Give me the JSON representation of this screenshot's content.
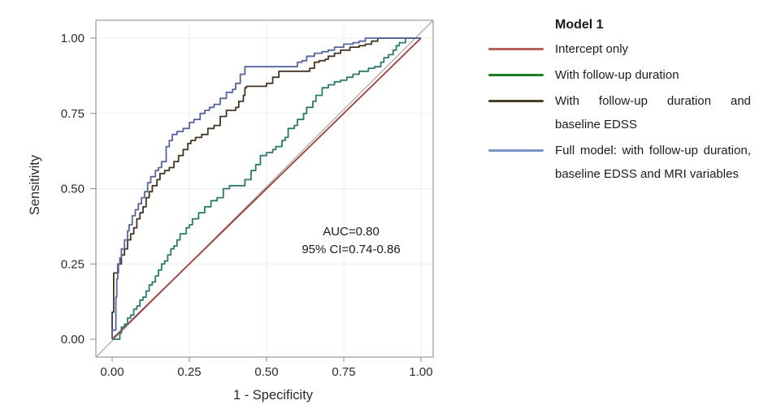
{
  "chart": {
    "ylabel": "Sensitivity",
    "xlabel": "1 - Specificity",
    "x_ticks": [
      "0.00",
      "0.25",
      "0.50",
      "0.75",
      "1.00"
    ],
    "y_ticks": [
      "0.00",
      "0.25",
      "0.50",
      "0.75",
      "1.00"
    ],
    "annotation_line1": "AUC=0.80",
    "annotation_line2": "95% CI=0.74-0.86"
  },
  "chart_data": {
    "type": "line",
    "subtype": "roc-step-curves",
    "title": "",
    "xlabel": "1 - Specificity",
    "ylabel": "Sensitivity",
    "xlim": [
      0,
      1
    ],
    "ylim": [
      0,
      1
    ],
    "tick_values": [
      0,
      0.25,
      0.5,
      0.75,
      1
    ],
    "tick_labels": [
      "0.00",
      "0.25",
      "0.50",
      "0.75",
      "1.00"
    ],
    "grid": true,
    "legend_position": "right",
    "annotation": {
      "lines": [
        "AUC=0.80",
        "95% CI=0.74-0.86"
      ],
      "x": 0.775,
      "y": 0.33
    },
    "reference_line": {
      "name": "chance-diagonal",
      "color": "#a9a9a9",
      "from": [
        0,
        0
      ],
      "to": [
        1,
        1
      ],
      "extends_to_frame": true
    },
    "frame_color": "#9a9a9a",
    "grid_color": "#ededed",
    "series": [
      {
        "name": "Intercept only",
        "color": "#9c3e37",
        "interp": "linear",
        "points": [
          [
            0,
            0
          ],
          [
            1,
            1
          ]
        ]
      },
      {
        "name": "With follow-up duration",
        "color": "#2a7a6c",
        "interp": "step",
        "points": [
          [
            0,
            0
          ],
          [
            0.025,
            0
          ],
          [
            0.03,
            0.02
          ],
          [
            0.04,
            0.04
          ],
          [
            0.05,
            0.05
          ],
          [
            0.06,
            0.07
          ],
          [
            0.07,
            0.08
          ],
          [
            0.08,
            0.1
          ],
          [
            0.09,
            0.11
          ],
          [
            0.1,
            0.13
          ],
          [
            0.11,
            0.14
          ],
          [
            0.12,
            0.16
          ],
          [
            0.13,
            0.18
          ],
          [
            0.14,
            0.19
          ],
          [
            0.15,
            0.21
          ],
          [
            0.16,
            0.23
          ],
          [
            0.17,
            0.25
          ],
          [
            0.18,
            0.26
          ],
          [
            0.19,
            0.28
          ],
          [
            0.2,
            0.3
          ],
          [
            0.21,
            0.31
          ],
          [
            0.22,
            0.33
          ],
          [
            0.24,
            0.35
          ],
          [
            0.25,
            0.37
          ],
          [
            0.26,
            0.38
          ],
          [
            0.28,
            0.4
          ],
          [
            0.3,
            0.42
          ],
          [
            0.32,
            0.44
          ],
          [
            0.34,
            0.46
          ],
          [
            0.36,
            0.47
          ],
          [
            0.38,
            0.5
          ],
          [
            0.41,
            0.51
          ],
          [
            0.43,
            0.51
          ],
          [
            0.45,
            0.53
          ],
          [
            0.465,
            0.56
          ],
          [
            0.48,
            0.58
          ],
          [
            0.5,
            0.61
          ],
          [
            0.52,
            0.62
          ],
          [
            0.53,
            0.63
          ],
          [
            0.55,
            0.64
          ],
          [
            0.56,
            0.66
          ],
          [
            0.57,
            0.67
          ],
          [
            0.59,
            0.7
          ],
          [
            0.6,
            0.71
          ],
          [
            0.62,
            0.73
          ],
          [
            0.63,
            0.75
          ],
          [
            0.65,
            0.77
          ],
          [
            0.66,
            0.79
          ],
          [
            0.68,
            0.81
          ],
          [
            0.7,
            0.835
          ],
          [
            0.72,
            0.845
          ],
          [
            0.74,
            0.855
          ],
          [
            0.76,
            0.86
          ],
          [
            0.78,
            0.87
          ],
          [
            0.8,
            0.88
          ],
          [
            0.83,
            0.89
          ],
          [
            0.85,
            0.9
          ],
          [
            0.87,
            0.905
          ],
          [
            0.88,
            0.92
          ],
          [
            0.895,
            0.935
          ],
          [
            0.91,
            0.945
          ],
          [
            0.92,
            0.96
          ],
          [
            0.93,
            0.975
          ],
          [
            0.95,
            0.985
          ],
          [
            0.965,
            1
          ],
          [
            1,
            1
          ]
        ]
      },
      {
        "name": "With follow-up duration and baseline EDSS",
        "color": "#443621",
        "interp": "step",
        "points": [
          [
            0,
            0
          ],
          [
            0.005,
            0.09
          ],
          [
            0.005,
            0.2
          ],
          [
            0.02,
            0.22
          ],
          [
            0.03,
            0.25
          ],
          [
            0.04,
            0.28
          ],
          [
            0.05,
            0.3
          ],
          [
            0.06,
            0.33
          ],
          [
            0.07,
            0.35
          ],
          [
            0.08,
            0.37
          ],
          [
            0.09,
            0.4
          ],
          [
            0.1,
            0.42
          ],
          [
            0.11,
            0.44
          ],
          [
            0.12,
            0.47
          ],
          [
            0.13,
            0.49
          ],
          [
            0.145,
            0.51
          ],
          [
            0.155,
            0.53
          ],
          [
            0.17,
            0.55
          ],
          [
            0.185,
            0.56
          ],
          [
            0.2,
            0.57
          ],
          [
            0.215,
            0.59
          ],
          [
            0.23,
            0.61
          ],
          [
            0.245,
            0.63
          ],
          [
            0.255,
            0.65
          ],
          [
            0.27,
            0.66
          ],
          [
            0.29,
            0.67
          ],
          [
            0.31,
            0.68
          ],
          [
            0.33,
            0.7
          ],
          [
            0.35,
            0.71
          ],
          [
            0.37,
            0.74
          ],
          [
            0.4,
            0.76
          ],
          [
            0.41,
            0.77
          ],
          [
            0.425,
            0.79
          ],
          [
            0.43,
            0.81
          ],
          [
            0.435,
            0.835
          ],
          [
            0.5,
            0.84
          ],
          [
            0.52,
            0.85
          ],
          [
            0.54,
            0.87
          ],
          [
            0.55,
            0.89
          ],
          [
            0.64,
            0.89
          ],
          [
            0.655,
            0.9
          ],
          [
            0.67,
            0.92
          ],
          [
            0.69,
            0.925
          ],
          [
            0.7,
            0.93
          ],
          [
            0.72,
            0.94
          ],
          [
            0.74,
            0.95
          ],
          [
            0.77,
            0.96
          ],
          [
            0.8,
            0.97
          ],
          [
            0.82,
            0.975
          ],
          [
            0.84,
            0.98
          ],
          [
            0.86,
            0.99
          ],
          [
            0.89,
            1
          ],
          [
            1,
            1
          ]
        ]
      },
      {
        "name": "Full model: with follow-up duration, baseline EDSS and MRI variables",
        "color": "#56659f",
        "interp": "step",
        "points": [
          [
            0,
            0
          ],
          [
            0.012,
            0.03
          ],
          [
            0.012,
            0.1
          ],
          [
            0.015,
            0.14
          ],
          [
            0.018,
            0.2
          ],
          [
            0.018,
            0.23
          ],
          [
            0.025,
            0.25
          ],
          [
            0.03,
            0.27
          ],
          [
            0.04,
            0.3
          ],
          [
            0.05,
            0.33
          ],
          [
            0.055,
            0.36
          ],
          [
            0.065,
            0.38
          ],
          [
            0.075,
            0.41
          ],
          [
            0.085,
            0.43
          ],
          [
            0.095,
            0.45
          ],
          [
            0.105,
            0.47
          ],
          [
            0.115,
            0.49
          ],
          [
            0.125,
            0.52
          ],
          [
            0.14,
            0.54
          ],
          [
            0.15,
            0.56
          ],
          [
            0.16,
            0.57
          ],
          [
            0.175,
            0.59
          ],
          [
            0.185,
            0.64
          ],
          [
            0.195,
            0.66
          ],
          [
            0.21,
            0.68
          ],
          [
            0.23,
            0.69
          ],
          [
            0.25,
            0.7
          ],
          [
            0.265,
            0.72
          ],
          [
            0.285,
            0.73
          ],
          [
            0.3,
            0.75
          ],
          [
            0.315,
            0.76
          ],
          [
            0.33,
            0.77
          ],
          [
            0.35,
            0.78
          ],
          [
            0.37,
            0.8
          ],
          [
            0.39,
            0.82
          ],
          [
            0.4,
            0.83
          ],
          [
            0.415,
            0.85
          ],
          [
            0.43,
            0.88
          ],
          [
            0.435,
            0.905
          ],
          [
            0.6,
            0.905
          ],
          [
            0.615,
            0.92
          ],
          [
            0.63,
            0.925
          ],
          [
            0.655,
            0.94
          ],
          [
            0.68,
            0.95
          ],
          [
            0.7,
            0.955
          ],
          [
            0.72,
            0.96
          ],
          [
            0.75,
            0.97
          ],
          [
            0.78,
            0.98
          ],
          [
            0.8,
            0.985
          ],
          [
            0.82,
            0.99
          ],
          [
            0.855,
            1
          ],
          [
            1,
            1
          ]
        ]
      }
    ]
  },
  "legend": {
    "title": "Model 1",
    "items": [
      {
        "label": "Intercept only",
        "color": "#b4605c"
      },
      {
        "label": "With follow-up duration",
        "color": "#1b7e22"
      },
      {
        "label": "With follow-up duration and baseline EDSS",
        "color": "#493c28"
      },
      {
        "label": "Full model: with follow-up duration, baseline EDSS and MRI variables",
        "color": "#7295c4"
      }
    ]
  }
}
